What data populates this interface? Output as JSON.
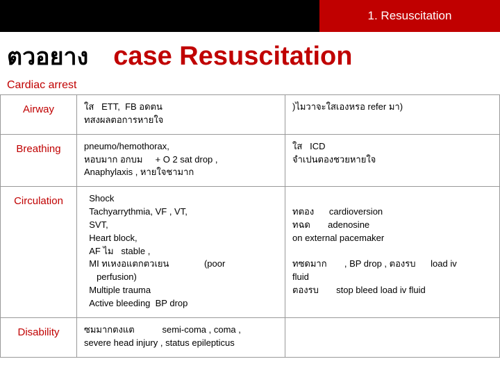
{
  "topbar": {
    "badge": "1. Resuscitation"
  },
  "title": {
    "thai": "ตวอยาง",
    "case": "case Resuscitation"
  },
  "subheader": "Cardiac arrest",
  "rows": {
    "airway": {
      "label": "Airway",
      "c2": "ใส   ETT,  FB อดตน\nทสงผลตอการหายใจ",
      "c3": ")ไมวาจะใสเองหรอ          refer มา)"
    },
    "breathing": {
      "label": "Breathing",
      "c2": "pneumo/hemothorax,\nหอบมาก อกบม     + O 2 sat drop ,\nAnaphylaxis , หายใจชามาก",
      "c3": "ใส   ICD\nจำเปนตองชวยหายใจ"
    },
    "circulation": {
      "label": "Circulation",
      "c2": "  Shock\n  Tachyarrythmia, VF , VT,\n  SVT,\n  Heart block,\n  AF ไม   stable ,\n  MI ทเหงอแตกตวเยน              (poor\n     perfusion)\n  Multiple trauma\n  Active bleeding  BP drop",
      "c3": "\nทตอง      cardioversion\nทฉด       adenosine\non external pacemaker\n\nทซดมาก       , BP drop , ตองรบ      load iv\nfluid\nตองรบ       stop bleed load iv fluid"
    },
    "disability": {
      "label": "Disability",
      "c2": "ซมมากตงแต           semi-coma , coma ,\nsevere head injury , status epilepticus",
      "c3": ""
    }
  }
}
